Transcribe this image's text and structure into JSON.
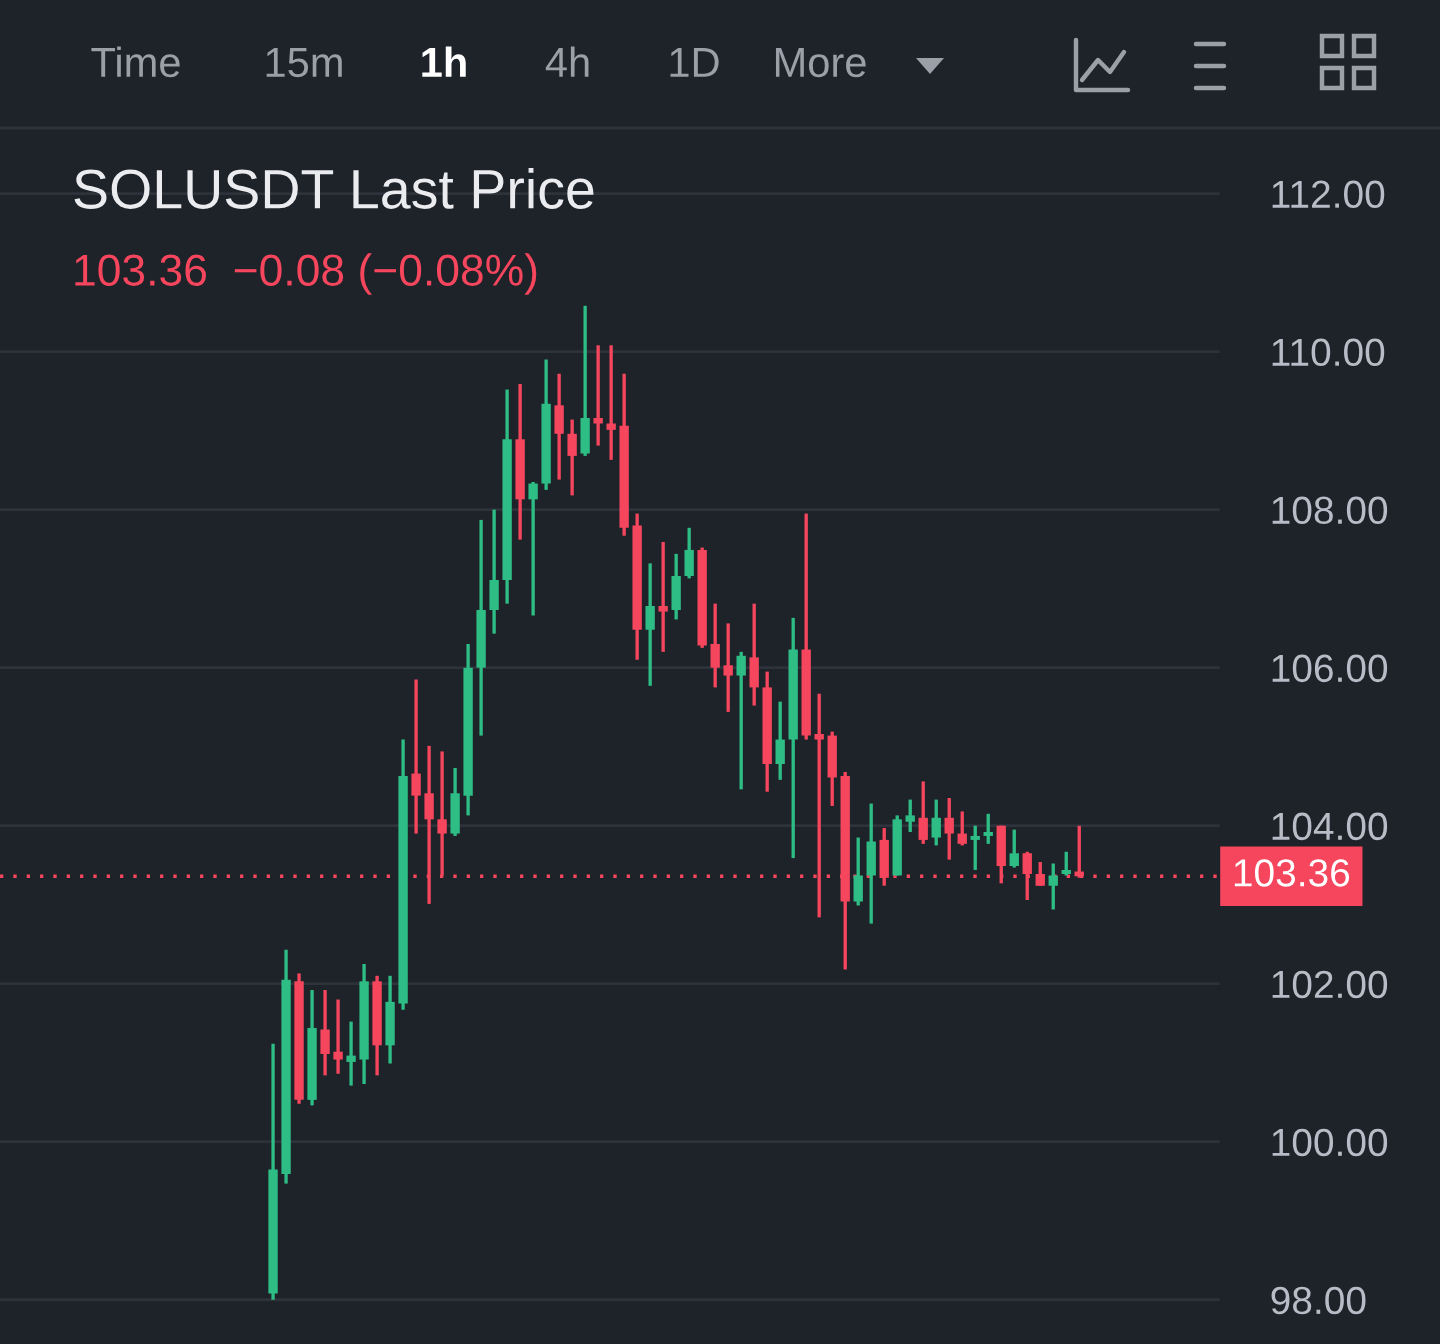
{
  "chart_data": {
    "type": "candlestick",
    "title": "SOLUSDT Last Price",
    "subtitle": "103.36  −0.08 (−0.08%)",
    "annotations": [
      "Time",
      "15m",
      "1h",
      "4h",
      "1D",
      "More"
    ],
    "categories": [
      null,
      null,
      null,
      null,
      null,
      null,
      null,
      null,
      null,
      null,
      null,
      null,
      null,
      null,
      null,
      null,
      null,
      null,
      null,
      null,
      null,
      null,
      null,
      null,
      null,
      null,
      null,
      null,
      null,
      null,
      null,
      null,
      null,
      null,
      null,
      null,
      null,
      null,
      null,
      null,
      null,
      null,
      null,
      null,
      null,
      null,
      null,
      null,
      null,
      null,
      null,
      null,
      null,
      null,
      null,
      null,
      null,
      null,
      null,
      null,
      null,
      null,
      null
    ],
    "ohlc": [
      [
        98.08,
        101.24,
        98.0,
        99.65
      ],
      [
        99.59,
        102.43,
        99.47,
        102.05
      ],
      [
        102.03,
        102.13,
        100.48,
        100.53
      ],
      [
        100.53,
        101.92,
        100.46,
        101.44
      ],
      [
        101.42,
        101.92,
        100.84,
        101.11
      ],
      [
        101.14,
        101.8,
        100.86,
        101.04
      ],
      [
        101.01,
        101.52,
        100.71,
        101.09
      ],
      [
        101.04,
        102.25,
        100.73,
        102.03
      ],
      [
        102.03,
        102.1,
        100.84,
        101.22
      ],
      [
        101.22,
        102.1,
        100.99,
        101.77
      ],
      [
        101.75,
        105.09,
        101.67,
        104.63
      ],
      [
        104.66,
        105.85,
        103.9,
        104.38
      ],
      [
        104.41,
        105.01,
        103.01,
        104.08
      ],
      [
        104.08,
        104.94,
        103.37,
        103.9
      ],
      [
        103.9,
        104.73,
        103.87,
        104.41
      ],
      [
        104.38,
        106.3,
        104.13,
        106.0
      ],
      [
        106.0,
        107.87,
        105.14,
        106.73
      ],
      [
        106.73,
        108.0,
        106.43,
        107.11
      ],
      [
        107.11,
        109.52,
        106.81,
        108.89
      ],
      [
        108.89,
        109.59,
        107.62,
        108.13
      ],
      [
        108.13,
        108.35,
        106.66,
        108.33
      ],
      [
        108.33,
        109.9,
        108.25,
        109.34
      ],
      [
        109.32,
        109.72,
        108.38,
        108.96
      ],
      [
        108.96,
        109.14,
        108.18,
        108.68
      ],
      [
        108.71,
        110.58,
        108.68,
        109.16
      ],
      [
        109.16,
        110.08,
        108.81,
        109.09
      ],
      [
        109.09,
        110.08,
        108.63,
        109.01
      ],
      [
        109.06,
        109.72,
        107.67,
        107.77
      ],
      [
        107.8,
        107.95,
        106.1,
        106.48
      ],
      [
        106.48,
        107.32,
        105.77,
        106.78
      ],
      [
        106.78,
        107.59,
        106.2,
        106.71
      ],
      [
        106.73,
        107.44,
        106.61,
        107.16
      ],
      [
        107.16,
        107.77,
        107.13,
        107.49
      ],
      [
        107.49,
        107.52,
        106.25,
        106.28
      ],
      [
        106.3,
        106.81,
        105.75,
        106.0
      ],
      [
        106.03,
        106.56,
        105.44,
        105.9
      ],
      [
        105.9,
        106.2,
        104.46,
        106.15
      ],
      [
        106.13,
        106.81,
        105.52,
        105.75
      ],
      [
        105.75,
        105.95,
        104.43,
        104.78
      ],
      [
        104.78,
        105.57,
        104.58,
        105.09
      ],
      [
        105.09,
        106.63,
        103.59,
        106.23
      ],
      [
        106.23,
        107.95,
        105.09,
        105.14
      ],
      [
        105.16,
        105.67,
        102.84,
        105.09
      ],
      [
        105.14,
        105.19,
        104.25,
        104.61
      ],
      [
        104.63,
        104.68,
        102.18,
        103.04
      ],
      [
        103.04,
        103.85,
        102.99,
        103.37
      ],
      [
        103.37,
        104.28,
        102.76,
        103.8
      ],
      [
        103.82,
        103.97,
        103.24,
        103.34
      ],
      [
        103.37,
        104.13,
        103.37,
        104.08
      ],
      [
        104.05,
        104.33,
        103.92,
        104.13
      ],
      [
        104.1,
        104.56,
        103.77,
        103.82
      ],
      [
        103.85,
        104.33,
        103.75,
        104.1
      ],
      [
        104.1,
        104.35,
        103.57,
        103.9
      ],
      [
        103.9,
        104.18,
        103.75,
        103.77
      ],
      [
        103.82,
        104.0,
        103.44,
        103.87
      ],
      [
        103.87,
        104.15,
        103.77,
        103.92
      ],
      [
        104.0,
        104.0,
        103.27,
        103.49
      ],
      [
        103.49,
        103.95,
        103.47,
        103.65
      ],
      [
        103.65,
        103.67,
        103.06,
        103.39
      ],
      [
        103.39,
        103.54,
        103.24,
        103.24
      ],
      [
        103.24,
        103.52,
        102.94,
        103.37
      ],
      [
        103.39,
        103.67,
        103.37,
        103.44
      ],
      [
        103.42,
        104.0,
        103.34,
        103.36
      ]
    ],
    "colors": [
      "#2ebd85",
      "#2ebd85",
      "#f6465d",
      "#2ebd85",
      "#f6465d",
      "#f6465d",
      "#2ebd85",
      "#2ebd85",
      "#f6465d",
      "#2ebd85",
      "#2ebd85",
      "#f6465d",
      "#f6465d",
      "#f6465d",
      "#2ebd85",
      "#2ebd85",
      "#2ebd85",
      "#2ebd85",
      "#2ebd85",
      "#f6465d",
      "#2ebd85",
      "#2ebd85",
      "#f6465d",
      "#f6465d",
      "#2ebd85",
      "#f6465d",
      "#f6465d",
      "#f6465d",
      "#f6465d",
      "#2ebd85",
      "#f6465d",
      "#2ebd85",
      "#2ebd85",
      "#f6465d",
      "#f6465d",
      "#f6465d",
      "#2ebd85",
      "#f6465d",
      "#f6465d",
      "#2ebd85",
      "#2ebd85",
      "#f6465d",
      "#f6465d",
      "#f6465d",
      "#f6465d",
      "#2ebd85",
      "#2ebd85",
      "#f6465d",
      "#2ebd85",
      "#2ebd85",
      "#f6465d",
      "#2ebd85",
      "#f6465d",
      "#f6465d",
      "#2ebd85",
      "#2ebd85",
      "#f6465d",
      "#2ebd85",
      "#f6465d",
      "#f6465d",
      "#2ebd85",
      "#2ebd85",
      "#f6465d"
    ],
    "ylim": [
      97.44,
      112.8
    ],
    "yticks": [
      {
        "value": 98,
        "label": "98.00"
      },
      {
        "value": 100,
        "label": "100.00"
      },
      {
        "value": 102,
        "label": "102.00"
      },
      {
        "value": 104,
        "label": "104.00"
      },
      {
        "value": 106,
        "label": "106.00"
      },
      {
        "value": 108,
        "label": "108.00"
      },
      {
        "value": 110,
        "label": "110.00"
      },
      {
        "value": 112,
        "label": "112.00"
      }
    ],
    "grid": "y",
    "ref_lines": [
      {
        "axis": "y",
        "value": 103.36,
        "label": "103.36",
        "color": "#f6465d",
        "line_style": "dotted"
      }
    ]
  }
}
